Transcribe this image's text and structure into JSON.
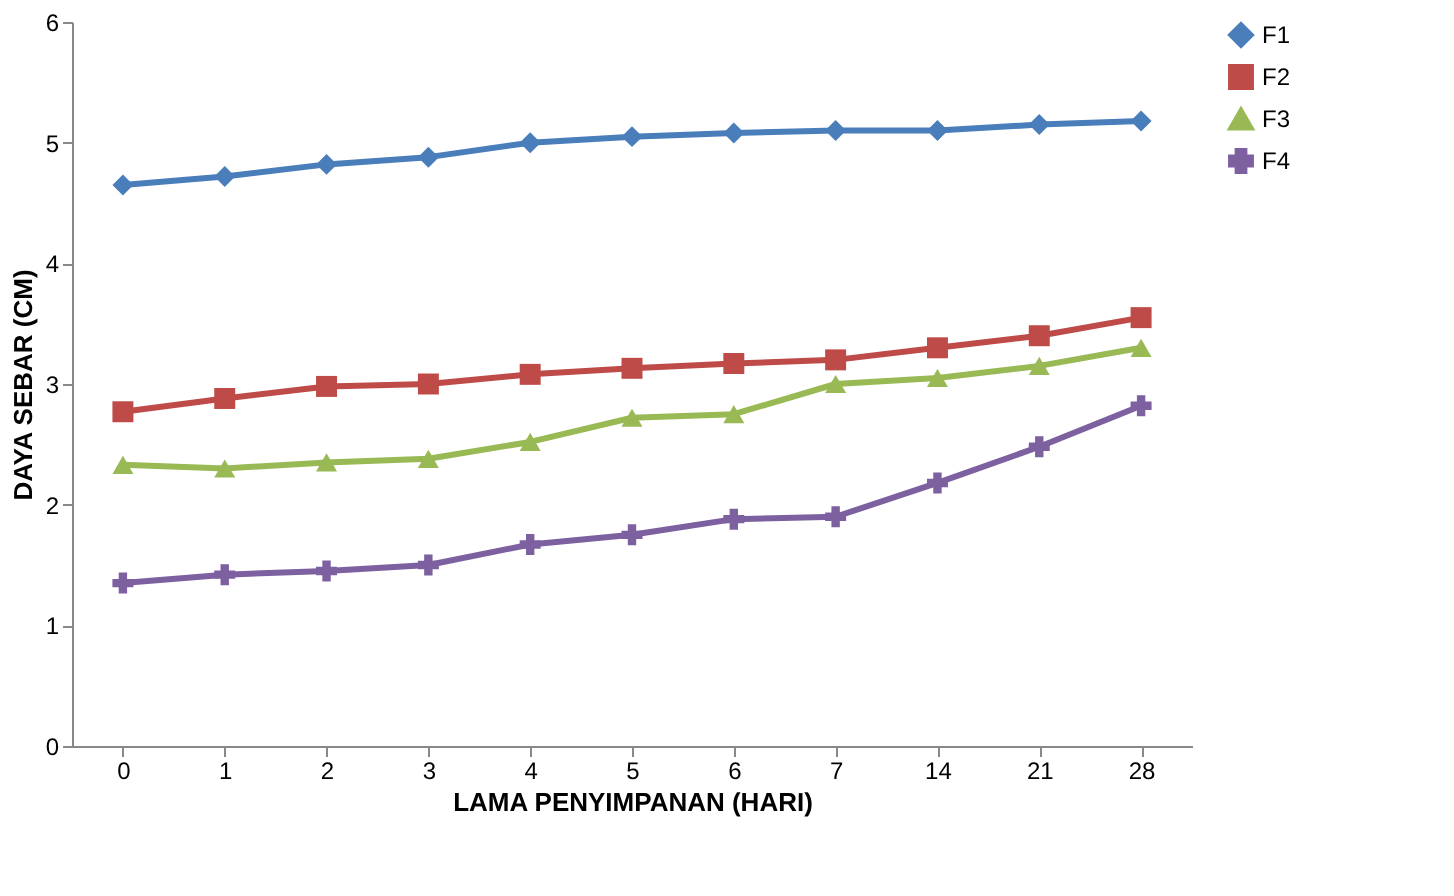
{
  "chart_data": {
    "type": "line",
    "xlabel": "LAMA PENYIMPANAN (HARI)",
    "ylabel": "DAYA SEBAR  (CM)",
    "categories": [
      "0",
      "1",
      "2",
      "3",
      "4",
      "5",
      "6",
      "7",
      "14",
      "21",
      "28"
    ],
    "ylim": [
      0,
      6
    ],
    "yticks": [
      0,
      1,
      2,
      3,
      4,
      5,
      6
    ],
    "grid": false,
    "legend": "right",
    "series": [
      {
        "name": "F1",
        "color": "#4a7ebb",
        "marker": "diamond",
        "values": [
          4.65,
          4.72,
          4.82,
          4.88,
          5.0,
          5.05,
          5.08,
          5.1,
          5.1,
          5.15,
          5.18
        ]
      },
      {
        "name": "F2",
        "color": "#be4b48",
        "marker": "square",
        "values": [
          2.77,
          2.88,
          2.98,
          3.0,
          3.08,
          3.13,
          3.17,
          3.2,
          3.3,
          3.4,
          3.55
        ]
      },
      {
        "name": "F3",
        "color": "#98b954",
        "marker": "triangle",
        "values": [
          2.33,
          2.3,
          2.35,
          2.38,
          2.52,
          2.72,
          2.75,
          3.0,
          3.05,
          3.15,
          3.3
        ]
      },
      {
        "name": "F4",
        "color": "#7d60a0",
        "marker": "cross",
        "values": [
          1.35,
          1.42,
          1.45,
          1.5,
          1.67,
          1.75,
          1.88,
          1.9,
          2.18,
          2.48,
          2.82
        ]
      }
    ]
  }
}
